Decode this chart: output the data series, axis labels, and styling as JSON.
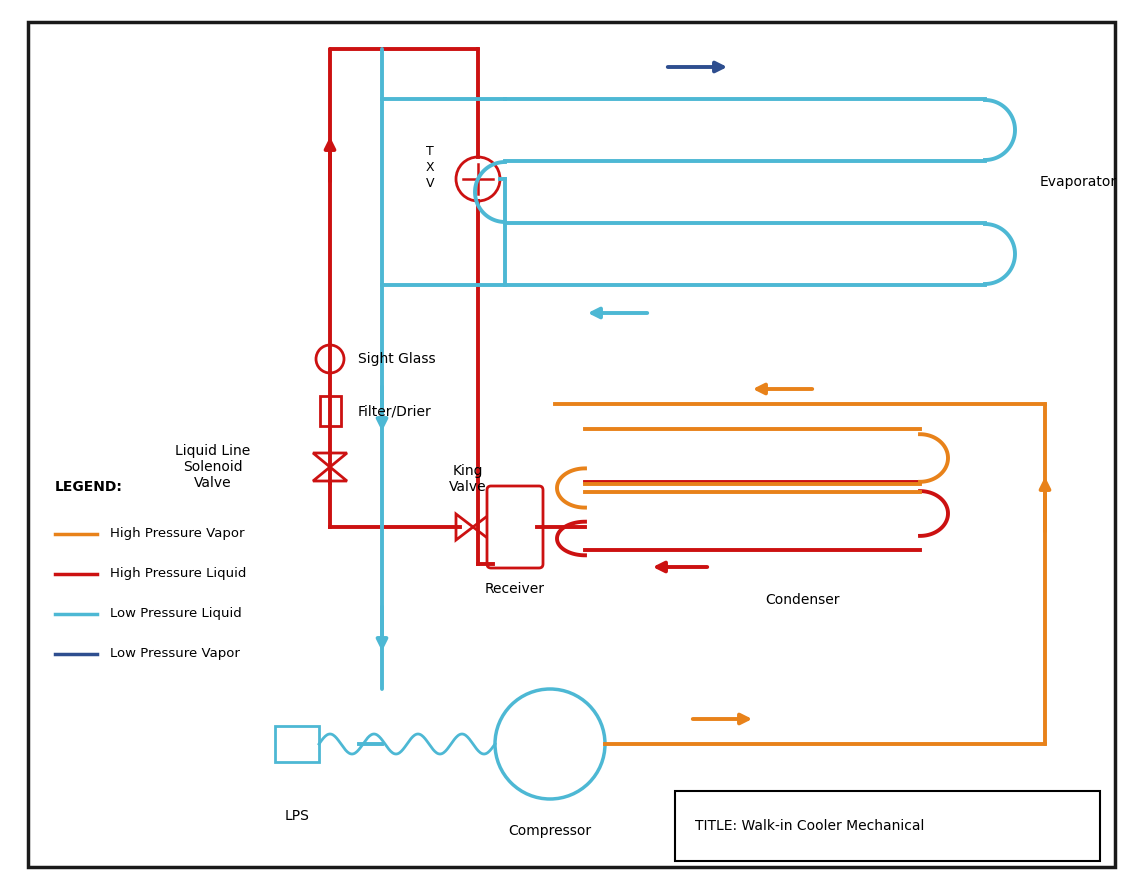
{
  "colors": {
    "high_pressure_vapor": "#E8821A",
    "high_pressure_liquid": "#CC1111",
    "low_pressure_liquid": "#4DB8D4",
    "low_pressure_vapor": "#2E4E8F",
    "background": "#FFFFFF",
    "border": "#1A1A1A"
  },
  "title": "TITLE: Walk-in Cooler Mechanical",
  "legend": {
    "title": "LEGEND:",
    "items": [
      {
        "label": "High Pressure Vapor",
        "color": "#E8821A"
      },
      {
        "label": "High Pressure Liquid",
        "color": "#CC1111"
      },
      {
        "label": "Low Pressure Liquid",
        "color": "#4DB8D4"
      },
      {
        "label": "Low Pressure Vapor",
        "color": "#2E4E8F"
      }
    ]
  },
  "labels": {
    "evaporator": "Evaporator",
    "condenser": "Condenser",
    "compressor": "Compressor",
    "receiver": "Receiver",
    "sight_glass": "Sight Glass",
    "filter_drier": "Filter/Drier",
    "liquid_line_solenoid": "Liquid Line\nSolenoid\nValve",
    "king_valve": "King\nValve",
    "lps": "LPS",
    "txv": "T\nX\nV"
  }
}
